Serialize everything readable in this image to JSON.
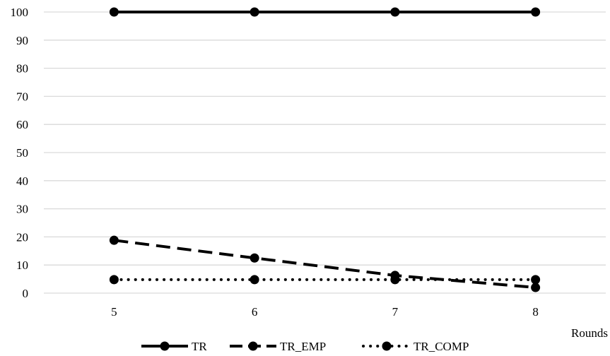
{
  "chart_data": {
    "type": "line",
    "title": "",
    "xlabel": "Rounds",
    "ylabel": "",
    "categories": [
      "5",
      "6",
      "7",
      "8"
    ],
    "ylim": [
      0,
      100
    ],
    "yticks": [
      0,
      10,
      20,
      30,
      40,
      50,
      60,
      70,
      80,
      90,
      100
    ],
    "grid": true,
    "legend_position": "bottom",
    "series": [
      {
        "name": "TR",
        "values": [
          100,
          100,
          100,
          100
        ],
        "line_style": "solid",
        "marker": "circle",
        "color": "#000000"
      },
      {
        "name": "TR_EMP",
        "values": [
          18.8,
          12.5,
          6.3,
          2
        ],
        "line_style": "dashed",
        "marker": "circle",
        "color": "#000000"
      },
      {
        "name": "TR_COMP",
        "values": [
          4.8,
          4.8,
          4.8,
          4.8
        ],
        "line_style": "dotted",
        "marker": "circle",
        "color": "#000000"
      }
    ]
  }
}
